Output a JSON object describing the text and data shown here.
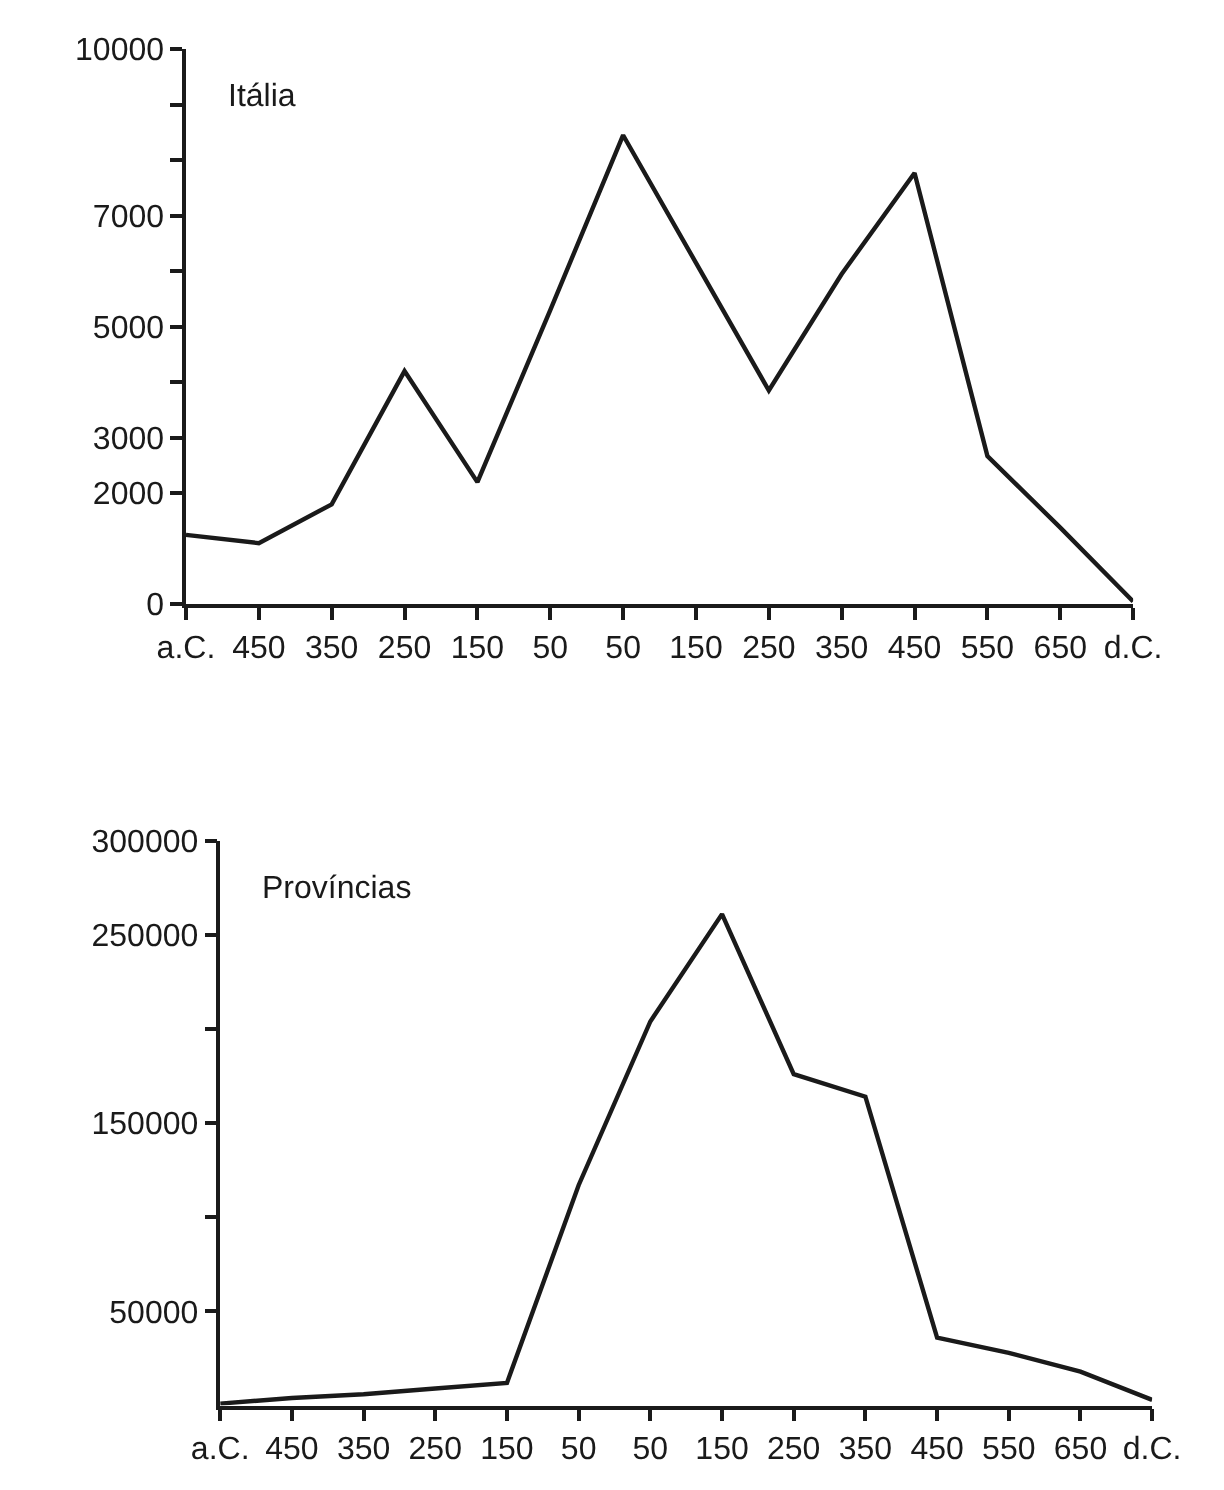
{
  "chart_data": [
    {
      "type": "line",
      "title": "Itália",
      "categories": [
        "a.C.",
        "450",
        "350",
        "250",
        "150",
        "50",
        "50",
        "150",
        "250",
        "350",
        "450",
        "550",
        "650",
        "d.C."
      ],
      "series": [
        {
          "color": "#1a1a1a",
          "values": [
            1250,
            1100,
            1800,
            4200,
            2200,
            5300,
            8450,
            6150,
            3850,
            5950,
            7770,
            2670,
            1380,
            50
          ]
        }
      ],
      "ylim": [
        0,
        10000
      ],
      "yticks": [
        0,
        2000,
        3000,
        {
          "value": 4000,
          "label": null
        },
        5000,
        {
          "value": 6000,
          "label": null
        },
        7000,
        {
          "value": 8000,
          "label": null
        },
        {
          "value": 9000,
          "label": null
        },
        10000
      ],
      "marker": "none",
      "line_style": "solid"
    },
    {
      "type": "line",
      "title": "Províncias",
      "categories": [
        "a.C.",
        "450",
        "350",
        "250",
        "150",
        "50",
        "50",
        "150",
        "250",
        "350",
        "450",
        "550",
        "650",
        "d.C."
      ],
      "series": [
        {
          "color": "#1a1a1a",
          "values": [
            1000,
            4000,
            6000,
            9000,
            12000,
            117000,
            204000,
            261000,
            176000,
            164000,
            36000,
            28000,
            18000,
            3000
          ]
        }
      ],
      "ylim": [
        0,
        300000
      ],
      "yticks": [
        50000,
        {
          "value": 100000,
          "label": null
        },
        150000,
        {
          "value": 200000,
          "label": null
        },
        250000,
        300000
      ],
      "marker": "none",
      "line_style": "solid"
    }
  ]
}
